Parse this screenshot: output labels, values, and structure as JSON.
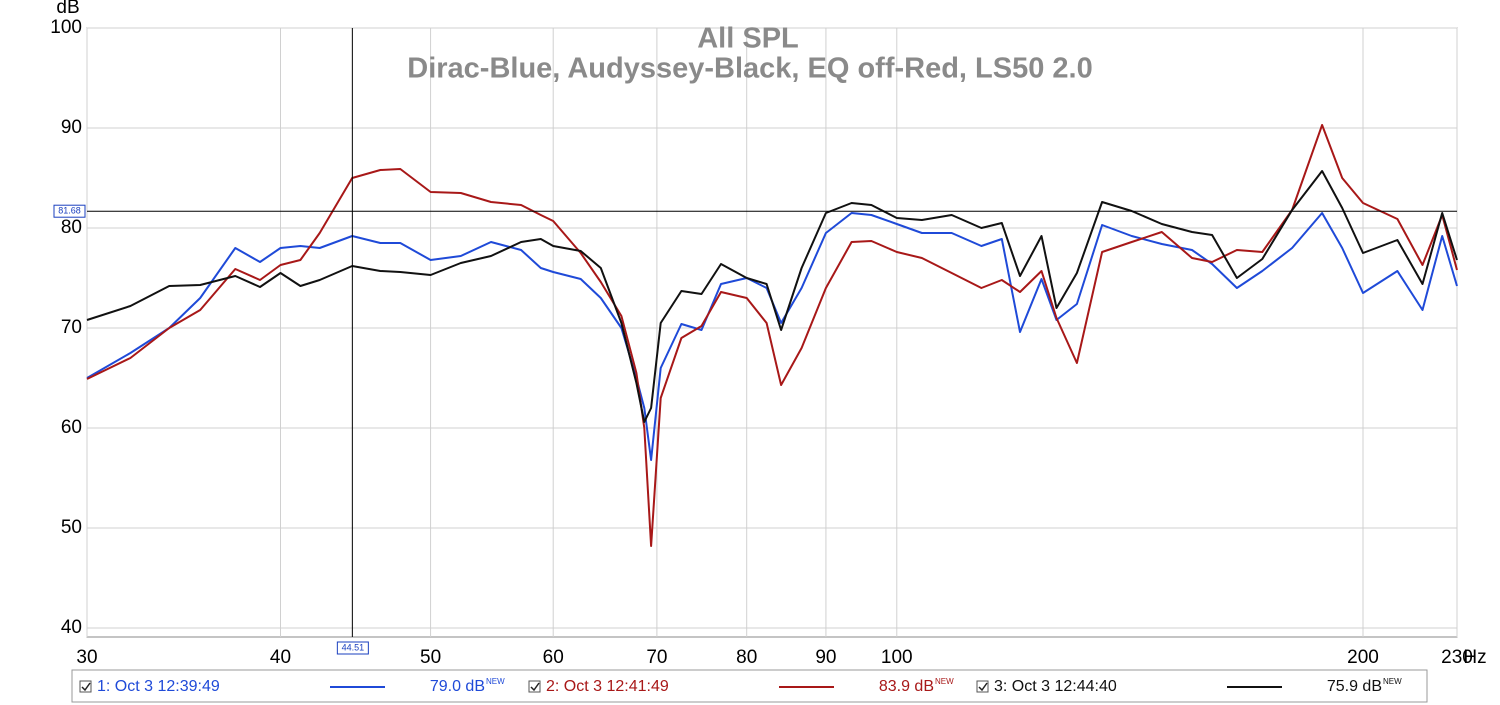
{
  "chart_data": {
    "type": "line",
    "title": "All SPL",
    "subtitle": "Dirac-Blue, Audyssey-Black, EQ off-Red, LS50 2.0",
    "y_label": "dB",
    "x_unit": "Hz",
    "xscale": "log",
    "grid": true,
    "xlim": [
      30,
      230
    ],
    "ylim": [
      39.1,
      100
    ],
    "xticks": [
      30,
      40,
      50,
      60,
      70,
      80,
      90,
      100,
      200,
      230
    ],
    "yticks": [
      40,
      50,
      60,
      70,
      80,
      90,
      100
    ],
    "cursor": {
      "x": 44.51,
      "y": 81.68
    },
    "x": [
      30,
      32,
      33.9,
      35.5,
      37.4,
      38.8,
      40,
      41.2,
      42.4,
      44.5,
      46.4,
      47.8,
      50,
      52.3,
      54.7,
      57.2,
      58.9,
      60,
      62.5,
      64.4,
      66.4,
      67.9,
      68.7,
      69.4,
      70.4,
      72.6,
      74.8,
      77,
      80,
      82.4,
      84.2,
      86.8,
      90,
      93.5,
      96.3,
      100,
      103.8,
      108.5,
      113.4,
      116.9,
      120.1,
      124,
      126.8,
      130.7,
      135.7,
      141.8,
      148.3,
      155.1,
      159.8,
      165.8,
      172.2,
      180,
      188.2,
      193.9,
      200,
      210.5,
      218.5,
      225,
      230
    ],
    "series": [
      {
        "name": "1: Oct 3 12:39:49",
        "color": "#1f4ad8",
        "readout": "79.0 dB",
        "badge": "NEW",
        "values": [
          65,
          67.5,
          70,
          73,
          78,
          76.6,
          78,
          78.2,
          78,
          79.2,
          78.5,
          78.5,
          76.8,
          77.2,
          78.6,
          77.8,
          76,
          75.6,
          74.9,
          73,
          70,
          65,
          62,
          56.8,
          66,
          70.4,
          69.8,
          74.4,
          75,
          74,
          70.5,
          74,
          79.5,
          81.5,
          81.3,
          80.4,
          79.5,
          79.5,
          78.2,
          78.9,
          69.6,
          74.9,
          70.8,
          72.4,
          80.3,
          79.2,
          78.4,
          77.8,
          76.4,
          74,
          75.7,
          78,
          81.5,
          78,
          73.5,
          75.7,
          71.8,
          79.2,
          74.2
        ]
      },
      {
        "name": "2: Oct 3 12:41:49",
        "color": "#a81818",
        "readout": "83.9 dB",
        "badge": "NEW",
        "values": [
          64.9,
          67,
          70,
          71.8,
          75.9,
          74.8,
          76.3,
          76.8,
          79.5,
          85,
          85.8,
          85.9,
          83.6,
          83.5,
          82.6,
          82.3,
          81.3,
          80.7,
          77.5,
          74.6,
          71.2,
          65.5,
          60,
          48.2,
          63,
          69,
          70.2,
          73.6,
          73,
          70.5,
          64.3,
          68,
          74,
          78.6,
          78.7,
          77.6,
          77,
          75.5,
          74,
          74.8,
          73.6,
          75.7,
          71,
          66.5,
          77.6,
          78.6,
          79.6,
          77,
          76.6,
          77.8,
          77.6,
          81.8,
          90.3,
          85,
          82.5,
          80.9,
          76.3,
          81.3,
          75.8
        ]
      },
      {
        "name": "3: Oct 3 12:44:40",
        "color": "#111111",
        "readout": "75.9 dB",
        "badge": "NEW",
        "values": [
          70.8,
          72.2,
          74.2,
          74.3,
          75.2,
          74.1,
          75.5,
          74.2,
          74.8,
          76.2,
          75.7,
          75.6,
          75.3,
          76.5,
          77.2,
          78.6,
          78.9,
          78.2,
          77.7,
          76,
          70.5,
          64.5,
          60.6,
          62,
          70.5,
          73.7,
          73.4,
          76.4,
          75,
          74.4,
          69.8,
          76,
          81.5,
          82.5,
          82.3,
          81,
          80.8,
          81.3,
          80,
          80.5,
          75.2,
          79.2,
          72,
          75.5,
          82.6,
          81.7,
          80.4,
          79.6,
          79.3,
          75,
          76.9,
          81.8,
          85.7,
          82,
          77.5,
          78.8,
          74.4,
          81.5,
          76.8
        ]
      }
    ]
  }
}
